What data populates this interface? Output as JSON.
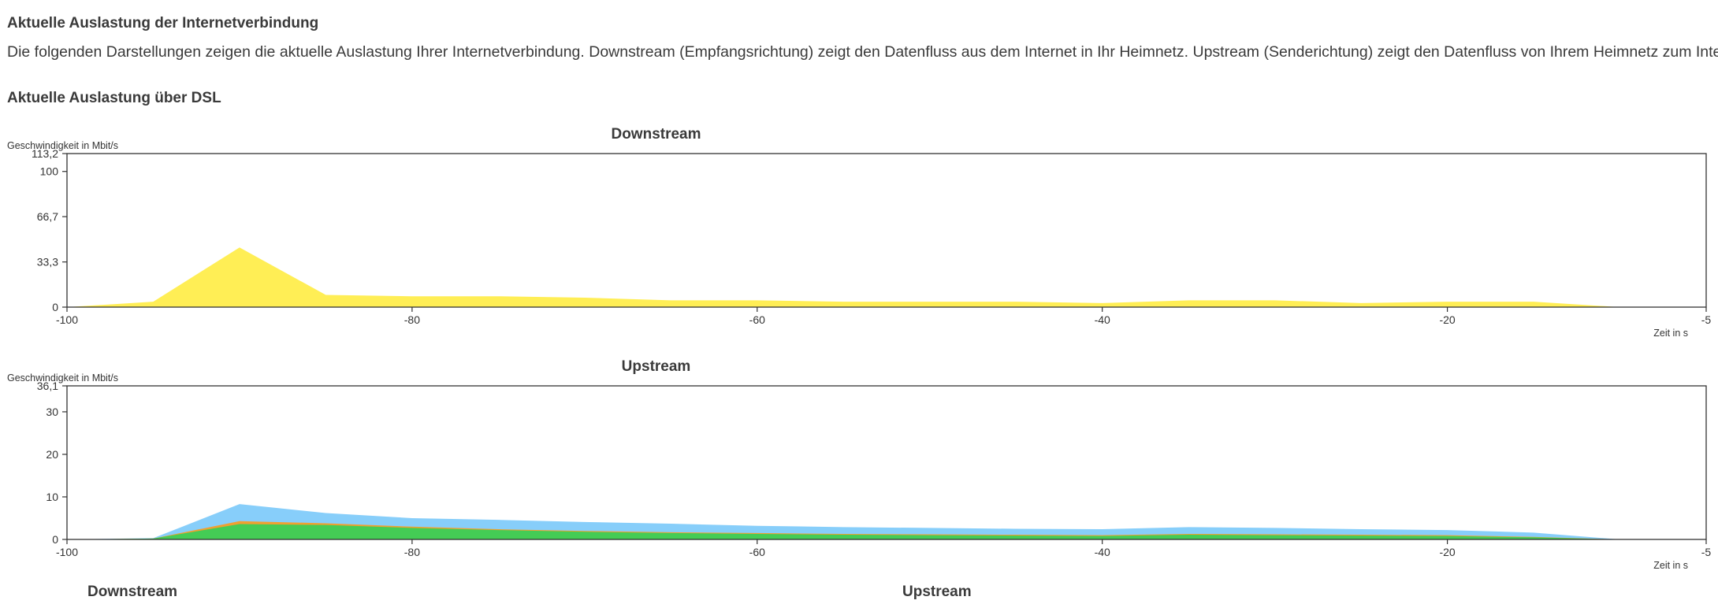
{
  "page": {
    "title": "Aktuelle Auslastung der Internetverbindung",
    "intro": "Die folgenden Darstellungen zeigen die aktuelle Auslastung Ihrer Internetverbindung. Downstream (Empfangsrichtung) zeigt den Datenfluss aus dem Internet in Ihr Heimnetz. Upstream (Senderichtung) zeigt den Datenfluss von Ihrem Heimnetz zum Internet.",
    "dsl_title": "Aktuelle Auslastung über DSL",
    "footer_labels": [
      "Downstream",
      "Upstream"
    ]
  },
  "colors": {
    "downstream_fill": "#ffee55",
    "upstream_total": "#87cefa",
    "upstream_orange": "#f0a030",
    "upstream_green": "#44cc55",
    "axis": "#333333"
  },
  "chart_data": [
    {
      "type": "area",
      "title": "Downstream",
      "ylabel": "Geschwindigkeit in Mbit/s",
      "xlabel": "Zeit in s",
      "xlim": [
        -100,
        -5
      ],
      "ylim": [
        0,
        113.2
      ],
      "yticks": [
        "0",
        "33,3",
        "66,7",
        "100",
        "113,2"
      ],
      "ytick_values": [
        0,
        33.3,
        66.7,
        100,
        113.2
      ],
      "xticks": [
        "-100",
        "-80",
        "-60",
        "-40",
        "-20",
        "-5"
      ],
      "xtick_values": [
        -100,
        -80,
        -60,
        -40,
        -20,
        -5
      ],
      "x": [
        -100,
        -95,
        -90,
        -85,
        -80,
        -75,
        -70,
        -65,
        -60,
        -55,
        -50,
        -45,
        -40,
        -35,
        -30,
        -25,
        -20,
        -15,
        -10,
        -5
      ],
      "series": [
        {
          "color": "#ffee55",
          "values": [
            0,
            4,
            44,
            9,
            8,
            8,
            7,
            5,
            5,
            4,
            4,
            4,
            3,
            5,
            5,
            3,
            4,
            4,
            0,
            0
          ]
        }
      ]
    },
    {
      "type": "area",
      "title": "Upstream",
      "ylabel": "Geschwindigkeit in Mbit/s",
      "xlabel": "Zeit in s",
      "xlim": [
        -100,
        -5
      ],
      "ylim": [
        0,
        36.1
      ],
      "yticks": [
        "0",
        "10",
        "20",
        "30",
        "36,1"
      ],
      "ytick_values": [
        0,
        10,
        20,
        30,
        36.1
      ],
      "xticks": [
        "-100",
        "-80",
        "-60",
        "-40",
        "-20",
        "-5"
      ],
      "xtick_values": [
        -100,
        -80,
        -60,
        -40,
        -20,
        -5
      ],
      "x": [
        -100,
        -95,
        -90,
        -85,
        -80,
        -75,
        -70,
        -65,
        -60,
        -55,
        -50,
        -45,
        -40,
        -35,
        -30,
        -25,
        -20,
        -15,
        -10,
        -5
      ],
      "series": [
        {
          "color": "#87cefa",
          "values": [
            0,
            0.3,
            8.3,
            6.2,
            5.0,
            4.6,
            4.1,
            3.7,
            3.2,
            2.9,
            2.7,
            2.5,
            2.4,
            2.9,
            2.7,
            2.4,
            2.2,
            1.6,
            0,
            0
          ]
        },
        {
          "color": "#f0a030",
          "values": [
            0,
            0.2,
            4.3,
            3.8,
            3.0,
            2.4,
            2.0,
            1.7,
            1.5,
            1.3,
            1.2,
            1.1,
            1.0,
            1.3,
            1.2,
            1.1,
            1.0,
            0.6,
            0,
            0
          ]
        },
        {
          "color": "#44cc55",
          "values": [
            0,
            0.2,
            3.6,
            3.4,
            2.7,
            2.2,
            1.8,
            1.5,
            1.3,
            1.1,
            1.0,
            0.9,
            0.8,
            1.1,
            1.0,
            0.9,
            0.8,
            0.5,
            0,
            0
          ]
        }
      ]
    }
  ]
}
